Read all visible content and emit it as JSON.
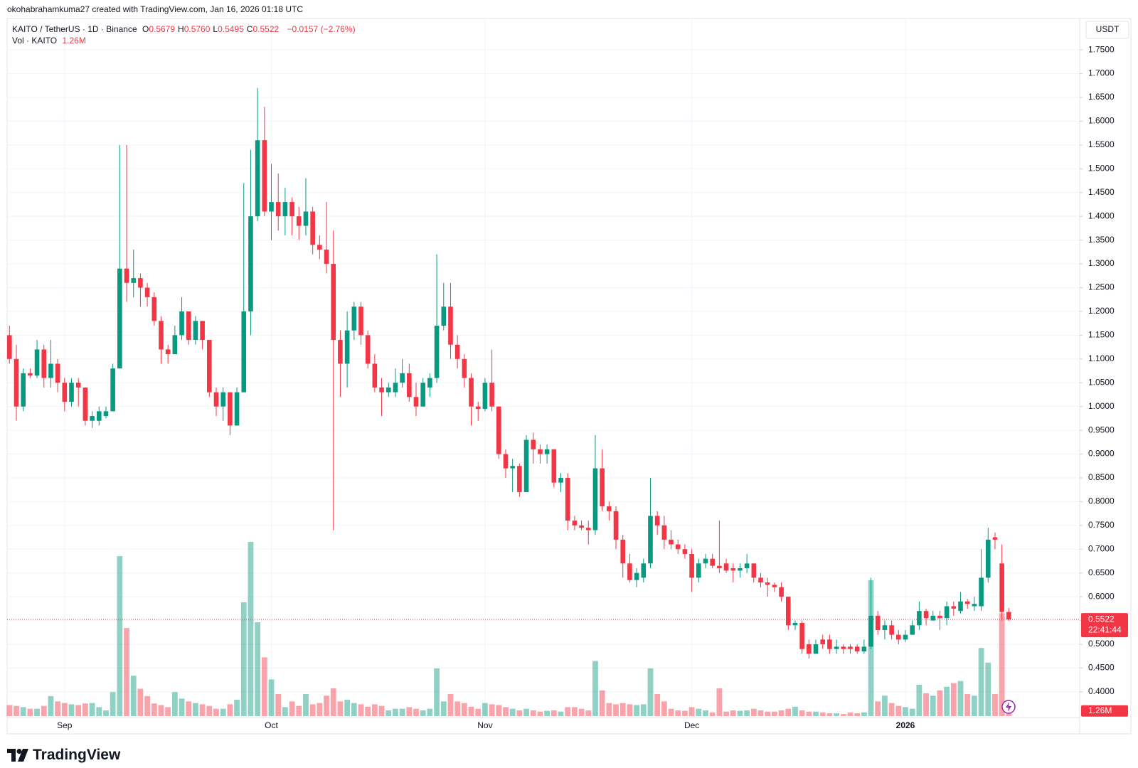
{
  "header": "okohabrahamkuma27 created with TradingView.com, Jan 16, 2026 01:18 UTC",
  "logo": "TradingView",
  "chart_data": {
    "type": "candlestick",
    "symbol": "KAITO / TetherUS · 1D · Binance",
    "ohlc_keys": [
      "O",
      "H",
      "L",
      "C"
    ],
    "ohlc_labels": [
      "0.5679",
      "0.5760",
      "0.5495",
      "0.5522"
    ],
    "change": "−0.0157 (−2.76%)",
    "volume_title": "Vol · KAITO",
    "last_volume_label": "1.26M",
    "currency": "USDT",
    "countdown": "22:41:44",
    "up_color": "#089981",
    "down_color": "#f23645",
    "grid": true,
    "categories": [
      null,
      null,
      null,
      null,
      null,
      null,
      null,
      null,
      "Sep",
      null,
      null,
      null,
      null,
      null,
      null,
      null,
      null,
      null,
      null,
      null,
      null,
      null,
      null,
      null,
      null,
      null,
      null,
      null,
      null,
      null,
      null,
      null,
      null,
      null,
      null,
      null,
      null,
      null,
      "Oct",
      null,
      null,
      null,
      null,
      null,
      null,
      null,
      null,
      null,
      null,
      null,
      null,
      null,
      null,
      null,
      null,
      null,
      null,
      null,
      null,
      null,
      null,
      null,
      null,
      null,
      null,
      null,
      null,
      null,
      null,
      "Nov",
      null,
      null,
      null,
      null,
      null,
      null,
      null,
      null,
      null,
      null,
      null,
      null,
      null,
      null,
      null,
      null,
      null,
      null,
      null,
      null,
      null,
      null,
      null,
      null,
      null,
      null,
      null,
      null,
      null,
      "Dec",
      null,
      null,
      null,
      null,
      null,
      null,
      null,
      null,
      null,
      null,
      null,
      null,
      null,
      null,
      null,
      null,
      null,
      null,
      null,
      null,
      null,
      null,
      null,
      null,
      null,
      null,
      null,
      null,
      null,
      null,
      "2026",
      null,
      null,
      null,
      null,
      null,
      null,
      null,
      null,
      null,
      null,
      null,
      null,
      null,
      null,
      null
    ],
    "open": [
      1.15,
      1.1,
      1.0,
      1.07,
      1.065,
      1.12,
      1.06,
      1.09,
      1.05,
      1.01,
      1.05,
      1.04,
      0.97,
      0.97,
      0.98,
      0.99,
      1.08,
      1.29,
      1.26,
      1.27,
      1.25,
      1.23,
      1.18,
      1.12,
      1.11,
      1.15,
      1.2,
      1.14,
      1.18,
      1.14,
      1.03,
      1.0,
      1.03,
      0.96,
      1.03,
      1.2,
      1.4,
      1.56,
      1.41,
      1.43,
      1.4,
      1.43,
      1.4,
      1.38,
      1.41,
      1.34,
      1.33,
      1.3,
      1.14,
      1.09,
      1.16,
      1.21,
      1.15,
      1.09,
      1.04,
      1.03,
      1.03,
      1.05,
      1.07,
      1.02,
      1.0,
      1.04,
      1.06,
      1.17,
      1.21,
      1.13,
      1.1,
      1.06,
      1.0,
      0.995,
      1.05,
      1.0,
      0.9,
      0.87,
      0.875,
      0.82,
      0.93,
      0.91,
      0.9,
      0.91,
      0.84,
      0.85,
      0.76,
      0.75,
      0.745,
      0.74,
      0.87,
      0.79,
      0.78,
      0.72,
      0.67,
      0.635,
      0.64,
      0.67,
      0.77,
      0.75,
      0.72,
      0.71,
      0.7,
      0.69,
      0.64,
      0.67,
      0.68,
      0.665,
      0.67,
      0.66,
      0.655,
      0.66,
      0.67,
      0.64,
      0.63,
      0.625,
      0.62,
      0.6,
      0.54,
      0.545,
      0.5,
      0.48,
      0.51,
      0.51,
      0.49,
      0.495,
      0.495,
      0.495,
      0.485,
      0.495,
      0.56,
      0.53,
      0.54,
      0.52,
      0.51,
      0.52,
      0.54,
      0.57,
      0.55,
      0.56,
      0.555,
      0.58,
      0.57,
      0.59,
      0.58,
      0.58,
      0.64,
      0.725,
      0.67,
      0.5679
    ],
    "high": [
      1.17,
      1.13,
      1.08,
      1.08,
      1.14,
      1.13,
      1.14,
      1.1,
      1.06,
      1.06,
      1.06,
      1.04,
      0.99,
      1.0,
      1.0,
      1.09,
      1.55,
      1.55,
      1.33,
      1.28,
      1.26,
      1.24,
      1.19,
      1.13,
      1.17,
      1.23,
      1.2,
      1.19,
      1.18,
      1.14,
      1.04,
      1.04,
      1.03,
      1.04,
      1.47,
      1.54,
      1.67,
      1.63,
      1.51,
      1.49,
      1.46,
      1.44,
      1.42,
      1.48,
      1.42,
      1.36,
      1.43,
      1.37,
      1.16,
      1.2,
      1.22,
      1.22,
      1.16,
      1.11,
      1.06,
      1.05,
      1.08,
      1.1,
      1.09,
      1.05,
      1.06,
      1.07,
      1.32,
      1.26,
      1.26,
      1.15,
      1.11,
      1.07,
      1.01,
      1.06,
      1.12,
      1.0,
      0.91,
      0.89,
      0.88,
      0.94,
      0.945,
      0.92,
      0.92,
      0.91,
      0.86,
      0.86,
      0.77,
      0.76,
      0.76,
      0.94,
      0.91,
      0.8,
      0.79,
      0.73,
      0.69,
      0.66,
      0.68,
      0.85,
      0.78,
      0.77,
      0.74,
      0.72,
      0.71,
      0.7,
      0.68,
      0.69,
      0.69,
      0.76,
      0.68,
      0.67,
      0.67,
      0.69,
      0.67,
      0.65,
      0.64,
      0.63,
      0.63,
      0.6,
      0.55,
      0.55,
      0.51,
      0.51,
      0.52,
      0.52,
      0.51,
      0.5,
      0.5,
      0.5,
      0.51,
      0.64,
      0.57,
      0.55,
      0.55,
      0.53,
      0.53,
      0.55,
      0.59,
      0.575,
      0.57,
      0.57,
      0.59,
      0.59,
      0.61,
      0.595,
      0.6,
      0.7,
      0.745,
      0.735,
      0.71,
      0.576
    ],
    "low": [
      1.09,
      0.97,
      0.99,
      1.06,
      1.06,
      1.04,
      1.04,
      1.03,
      0.99,
      1.0,
      1.0,
      0.96,
      0.955,
      0.96,
      0.975,
      0.99,
      1.08,
      1.22,
      1.23,
      1.21,
      1.21,
      1.17,
      1.09,
      1.09,
      1.11,
      1.14,
      1.13,
      1.13,
      1.12,
      1.02,
      0.98,
      0.97,
      0.94,
      0.96,
      1.03,
      1.15,
      1.39,
      1.4,
      1.35,
      1.37,
      1.36,
      1.36,
      1.35,
      1.36,
      1.32,
      1.31,
      1.28,
      0.74,
      1.02,
      1.04,
      1.14,
      1.13,
      1.08,
      1.03,
      0.98,
      1.02,
      1.02,
      1.04,
      1.01,
      0.98,
      1.0,
      1.02,
      1.05,
      1.16,
      1.1,
      1.08,
      1.04,
      0.96,
      0.97,
      0.99,
      0.99,
      0.89,
      0.85,
      0.82,
      0.81,
      0.82,
      0.88,
      0.88,
      0.88,
      0.83,
      0.82,
      0.74,
      0.74,
      0.74,
      0.71,
      0.73,
      0.78,
      0.76,
      0.7,
      0.64,
      0.63,
      0.62,
      0.63,
      0.66,
      0.73,
      0.7,
      0.7,
      0.69,
      0.68,
      0.61,
      0.63,
      0.66,
      0.66,
      0.65,
      0.65,
      0.63,
      0.64,
      0.65,
      0.63,
      0.62,
      0.6,
      0.61,
      0.59,
      0.53,
      0.53,
      0.48,
      0.47,
      0.48,
      0.49,
      0.48,
      0.48,
      0.48,
      0.48,
      0.48,
      0.48,
      0.49,
      0.52,
      0.51,
      0.51,
      0.5,
      0.505,
      0.52,
      0.53,
      0.54,
      0.55,
      0.53,
      0.54,
      0.56,
      0.565,
      0.575,
      0.57,
      0.57,
      0.63,
      0.7,
      0.55,
      0.5495
    ],
    "close": [
      1.1,
      1.0,
      1.07,
      1.065,
      1.12,
      1.06,
      1.09,
      1.05,
      1.01,
      1.05,
      1.04,
      0.97,
      0.98,
      0.99,
      0.99,
      1.08,
      1.29,
      1.26,
      1.27,
      1.25,
      1.23,
      1.18,
      1.12,
      1.11,
      1.15,
      1.2,
      1.14,
      1.18,
      1.14,
      1.03,
      1.0,
      1.03,
      0.96,
      1.03,
      1.2,
      1.4,
      1.56,
      1.41,
      1.43,
      1.4,
      1.43,
      1.4,
      1.38,
      1.41,
      1.34,
      1.33,
      1.3,
      1.14,
      1.09,
      1.16,
      1.21,
      1.15,
      1.09,
      1.04,
      1.03,
      1.04,
      1.05,
      1.07,
      1.02,
      1.0,
      1.05,
      1.06,
      1.17,
      1.21,
      1.13,
      1.1,
      1.06,
      1.0,
      0.995,
      1.05,
      1.0,
      0.9,
      0.87,
      0.875,
      0.82,
      0.93,
      0.91,
      0.9,
      0.91,
      0.84,
      0.85,
      0.76,
      0.75,
      0.745,
      0.74,
      0.87,
      0.79,
      0.78,
      0.72,
      0.67,
      0.635,
      0.65,
      0.67,
      0.77,
      0.75,
      0.72,
      0.71,
      0.7,
      0.69,
      0.64,
      0.67,
      0.68,
      0.665,
      0.66,
      0.655,
      0.655,
      0.66,
      0.67,
      0.64,
      0.63,
      0.625,
      0.62,
      0.6,
      0.54,
      0.545,
      0.49,
      0.48,
      0.5,
      0.5,
      0.49,
      0.495,
      0.49,
      0.49,
      0.485,
      0.495,
      0.56,
      0.53,
      0.54,
      0.52,
      0.51,
      0.52,
      0.54,
      0.57,
      0.555,
      0.56,
      0.555,
      0.58,
      0.575,
      0.59,
      0.585,
      0.585,
      0.64,
      0.72,
      0.72,
      0.5679,
      0.5522
    ],
    "volume": [
      2.7,
      2.5,
      2.2,
      1.8,
      1.8,
      2.5,
      4.9,
      3.6,
      3.2,
      2.9,
      2.7,
      3.1,
      3.2,
      2.2,
      1.4,
      5.9,
      39.2,
      21.6,
      9.9,
      6.7,
      4.9,
      3.1,
      2.7,
      2.2,
      5.9,
      4.3,
      3.6,
      3.2,
      2.9,
      2.5,
      1.8,
      1.8,
      2.9,
      4.0,
      27.9,
      42.7,
      23.0,
      14.4,
      9.0,
      5.4,
      2.2,
      3.6,
      2.5,
      5.4,
      2.9,
      3.2,
      5.0,
      6.8,
      3.6,
      4.0,
      3.2,
      2.9,
      2.3,
      2.9,
      2.5,
      1.4,
      1.8,
      1.8,
      2.2,
      1.8,
      1.4,
      1.8,
      11.7,
      3.6,
      5.4,
      3.6,
      3.2,
      2.3,
      1.8,
      3.2,
      2.9,
      2.7,
      2.2,
      1.8,
      1.4,
      1.8,
      1.4,
      1.1,
      1.3,
      1.4,
      1.1,
      2.2,
      2.2,
      1.8,
      1.4,
      13.5,
      6.3,
      3.2,
      2.9,
      3.2,
      2.9,
      2.7,
      2.9,
      11.7,
      5.4,
      3.6,
      1.8,
      1.4,
      1.3,
      2.2,
      1.8,
      1.4,
      0.9,
      6.8,
      1.1,
      1.4,
      1.3,
      1.4,
      1.8,
      1.4,
      1.1,
      1.1,
      1.4,
      1.8,
      2.3,
      1.4,
      1.1,
      1.1,
      0.9,
      0.7,
      0.7,
      0.5,
      0.9,
      0.7,
      0.9,
      33.3,
      3.6,
      5.0,
      3.2,
      2.5,
      2.2,
      1.8,
      7.7,
      5.6,
      5.0,
      6.3,
      7.2,
      8.1,
      8.6,
      5.4,
      5.0,
      16.7,
      13.1,
      5.4,
      25.2,
      1.26
    ],
    "ylim": [
      0.346,
      1.816
    ],
    "yticks": [
      {
        "value": 0.4,
        "label": "0.4000"
      },
      {
        "value": 0.45,
        "label": "0.4500"
      },
      {
        "value": 0.5,
        "label": "0.5000"
      },
      {
        "value": 0.55,
        "label": "0.5500"
      },
      {
        "value": 0.6,
        "label": "0.6000"
      },
      {
        "value": 0.65,
        "label": "0.6500"
      },
      {
        "value": 0.7,
        "label": "0.7000"
      },
      {
        "value": 0.75,
        "label": "0.7500"
      },
      {
        "value": 0.8,
        "label": "0.8000"
      },
      {
        "value": 0.85,
        "label": "0.8500"
      },
      {
        "value": 0.9,
        "label": "0.9000"
      },
      {
        "value": 0.95,
        "label": "0.9500"
      },
      {
        "value": 1.0,
        "label": "1.0000"
      },
      {
        "value": 1.05,
        "label": "1.0500"
      },
      {
        "value": 1.1,
        "label": "1.1000"
      },
      {
        "value": 1.15,
        "label": "1.1500"
      },
      {
        "value": 1.2,
        "label": "1.2000"
      },
      {
        "value": 1.25,
        "label": "1.2500"
      },
      {
        "value": 1.3,
        "label": "1.3000"
      },
      {
        "value": 1.35,
        "label": "1.3500"
      },
      {
        "value": 1.4,
        "label": "1.4000"
      },
      {
        "value": 1.45,
        "label": "1.4500"
      },
      {
        "value": 1.5,
        "label": "1.5000"
      },
      {
        "value": 1.55,
        "label": "1.5500"
      },
      {
        "value": 1.6,
        "label": "1.6000"
      },
      {
        "value": 1.65,
        "label": "1.6500"
      },
      {
        "value": 1.7,
        "label": "1.7000"
      },
      {
        "value": 1.75,
        "label": "1.7500"
      }
    ]
  }
}
